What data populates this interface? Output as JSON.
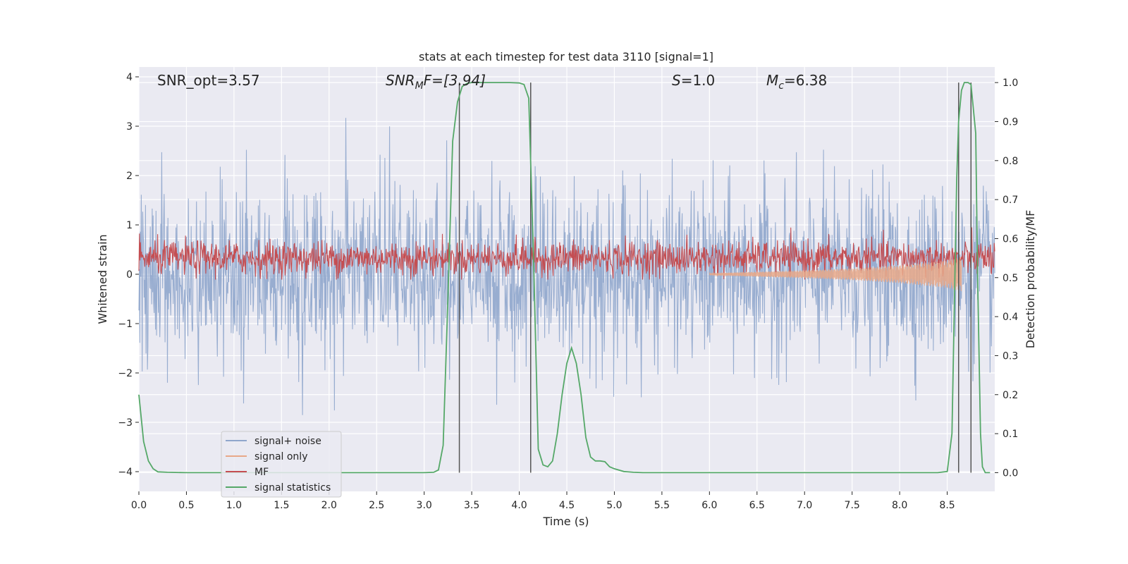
{
  "chart_data": {
    "type": "line",
    "title": "stats at each timestep for test data 3110 [signal=1]",
    "xlabel": "Time (s)",
    "ylabel": "Whitened strain",
    "ylabel_right": "Detection probability/MF",
    "xlim": [
      0.0,
      9.0
    ],
    "ylim": [
      -4.4,
      4.2
    ],
    "ylim_right": [
      -0.048,
      1.04
    ],
    "grid": true,
    "legend_position": "lower-left",
    "x_ticks": [
      "0.0",
      "0.5",
      "1.0",
      "1.5",
      "2.0",
      "2.5",
      "3.0",
      "3.5",
      "4.0",
      "4.5",
      "5.0",
      "5.5",
      "6.0",
      "6.5",
      "7.0",
      "7.5",
      "8.0",
      "8.5"
    ],
    "x_tick_values": [
      0.0,
      0.5,
      1.0,
      1.5,
      2.0,
      2.5,
      3.0,
      3.5,
      4.0,
      4.5,
      5.0,
      5.5,
      6.0,
      6.5,
      7.0,
      7.5,
      8.0,
      8.5
    ],
    "y_ticks": [
      "4",
      "3",
      "2",
      "1",
      "0",
      "−1",
      "−2",
      "−3",
      "−4"
    ],
    "y_tick_values": [
      4,
      3,
      2,
      1,
      0,
      -1,
      -2,
      -3,
      -4
    ],
    "y2_ticks": [
      "1.0",
      "0.9",
      "0.8",
      "0.7",
      "0.6",
      "0.5",
      "0.4",
      "0.3",
      "0.2",
      "0.1",
      "0.0"
    ],
    "y2_tick_values": [
      1.0,
      0.9,
      0.8,
      0.7,
      0.6,
      0.5,
      0.4,
      0.3,
      0.2,
      0.1,
      0.0
    ],
    "annotations": {
      "snr_opt": "SNR_opt=3.57",
      "snr_mf_base": "SNR",
      "snr_mf_sub": "M",
      "snr_mf_tail": "F=[3.94]",
      "s_base": "S",
      "s_tail": "=1.0",
      "mc_base": "M",
      "mc_sub": "c",
      "mc_tail": "=6.38"
    },
    "series": [
      {
        "name": "signal+ noise",
        "color": "#8fa6cc",
        "style": "noise band",
        "mean": 0.0,
        "std": 0.85,
        "range": [
          -4.0,
          3.4
        ]
      },
      {
        "name": "signal only",
        "color": "#e8a888",
        "style": "chirp, growing amplitude",
        "x": [
          6.0,
          6.5,
          7.0,
          7.5,
          8.0,
          8.5,
          8.65
        ],
        "amplitude": [
          0.02,
          0.05,
          0.08,
          0.12,
          0.18,
          0.28,
          0.35
        ]
      },
      {
        "name": "MF",
        "color": "#c44e52",
        "axis": "right",
        "style": "fluctuating band",
        "low": 0.5,
        "high": 0.6,
        "max": 0.63
      },
      {
        "name": "signal statistics",
        "color": "#55a868",
        "axis": "right",
        "x": [
          0.0,
          0.05,
          0.1,
          0.15,
          0.2,
          0.3,
          0.5,
          1.0,
          1.5,
          2.0,
          2.5,
          3.0,
          3.1,
          3.15,
          3.2,
          3.25,
          3.3,
          3.35,
          3.4,
          3.45,
          3.5,
          3.6,
          3.75,
          3.9,
          4.0,
          4.05,
          4.1,
          4.15,
          4.2,
          4.25,
          4.3,
          4.35,
          4.4,
          4.45,
          4.5,
          4.55,
          4.6,
          4.65,
          4.7,
          4.75,
          4.8,
          4.85,
          4.9,
          4.95,
          5.0,
          5.1,
          5.2,
          5.3,
          5.4,
          5.5,
          6.0,
          6.5,
          7.0,
          7.5,
          8.0,
          8.4,
          8.5,
          8.55,
          8.6,
          8.62,
          8.65,
          8.68,
          8.7,
          8.72,
          8.75,
          8.8,
          8.82,
          8.85,
          8.87,
          8.9,
          8.95
        ],
        "y": [
          0.2,
          0.08,
          0.03,
          0.01,
          0.002,
          0.001,
          0.0,
          0.0,
          0.0,
          0.0,
          0.0,
          0.0,
          0.001,
          0.007,
          0.07,
          0.45,
          0.85,
          0.95,
          0.99,
          0.998,
          1.0,
          1.0,
          1.0,
          1.0,
          0.999,
          0.995,
          0.96,
          0.55,
          0.06,
          0.02,
          0.015,
          0.03,
          0.1,
          0.2,
          0.28,
          0.32,
          0.28,
          0.2,
          0.09,
          0.04,
          0.03,
          0.03,
          0.028,
          0.015,
          0.01,
          0.003,
          0.001,
          0.0,
          0.0,
          0.0,
          0.0,
          0.0,
          0.0,
          0.0,
          0.0,
          0.0,
          0.003,
          0.1,
          0.75,
          0.9,
          0.98,
          1.0,
          1.0,
          1.0,
          0.995,
          0.87,
          0.5,
          0.1,
          0.015,
          0.0,
          0.0
        ]
      }
    ],
    "vertical_markers": [
      3.37,
      4.12,
      8.62,
      8.75
    ]
  }
}
